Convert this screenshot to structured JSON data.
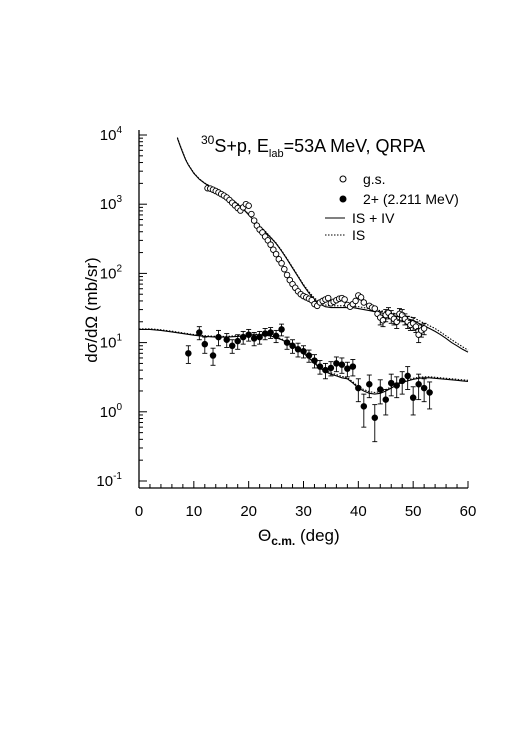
{
  "chart_data": {
    "type": "scatter",
    "title": {
      "sup": "30",
      "pre": "S+p, E",
      "sub": "lab",
      "post": "=53A MeV, QRPA"
    },
    "xlabel": {
      "main": "Θ",
      "sub": "c.m.",
      "unit": " (deg)"
    },
    "ylabel": "dσ/dΩ  (mb/sr)",
    "xlim": [
      0,
      60
    ],
    "ylim": [
      0.1,
      10000
    ],
    "yscale": "log",
    "x_ticks": [
      "0",
      "10",
      "20",
      "30",
      "40",
      "50",
      "60"
    ],
    "y_ticks": [
      {
        "base": "10",
        "exp": "-1"
      },
      {
        "base": "10",
        "exp": "0"
      },
      {
        "base": "10",
        "exp": "1"
      },
      {
        "base": "10",
        "exp": "2"
      },
      {
        "base": "10",
        "exp": "3"
      },
      {
        "base": "10",
        "exp": "4"
      }
    ],
    "legend_position": "top-right",
    "series": [
      {
        "name": "g.s.",
        "kind": "points",
        "marker": "open-circle",
        "x": [
          12.5,
          13.0,
          13.5,
          14.0,
          14.5,
          15.0,
          15.5,
          16.0,
          16.5,
          17.0,
          17.5,
          18.0,
          18.5,
          19.0,
          19.5,
          20.0,
          20.5,
          21.0,
          21.5,
          22.0,
          22.5,
          23.0,
          23.5,
          24.0,
          24.5,
          25.0,
          25.5,
          26.0,
          26.5,
          27.0,
          27.5,
          28.0,
          28.5,
          29.0,
          29.5,
          30.0,
          30.5,
          31.0,
          31.5,
          32.0,
          32.5,
          33.0,
          33.5,
          34.0,
          34.5,
          35.0,
          35.5,
          36.0,
          36.5,
          37.0,
          37.5,
          38.0,
          38.5,
          39.0,
          39.5,
          40.0,
          40.5,
          41.0,
          42.0,
          42.5,
          43.0,
          43.5,
          44.0,
          44.5,
          45.0,
          45.5,
          46.0,
          46.5,
          47.0,
          47.5,
          48.0,
          48.5,
          49.0,
          49.5,
          50.0,
          50.5,
          51.0,
          51.5,
          52.0
        ],
        "y": [
          1700,
          1680,
          1620,
          1550,
          1480,
          1400,
          1330,
          1250,
          1150,
          1050,
          960,
          880,
          810,
          900,
          1000,
          950,
          720,
          580,
          490,
          430,
          390,
          340,
          300,
          260,
          220,
          190,
          160,
          140,
          115,
          95,
          80,
          70,
          62,
          55,
          50,
          47,
          45,
          43,
          41,
          36,
          34,
          38,
          40,
          42,
          44,
          37,
          39,
          41,
          43,
          44,
          42,
          35,
          33,
          36,
          40,
          48,
          45,
          38,
          34,
          32,
          31,
          26,
          23,
          21,
          25,
          27,
          24,
          22,
          20,
          26,
          25,
          22,
          20,
          18,
          19,
          17,
          13,
          15,
          16
        ],
        "err": [
          0,
          0,
          0,
          0,
          0,
          0,
          0,
          0,
          0,
          0,
          0,
          0,
          0,
          0,
          0,
          0,
          0,
          0,
          0,
          0,
          0,
          0,
          0,
          0,
          0,
          0,
          0,
          0,
          0,
          0,
          0,
          0,
          0,
          0,
          0,
          0,
          0,
          0,
          0,
          0,
          0,
          0,
          0,
          0,
          0,
          0,
          0,
          0,
          0,
          0,
          0,
          0,
          0,
          0,
          0,
          0,
          0,
          0,
          0,
          0,
          0,
          0,
          5,
          4,
          5,
          5,
          5,
          4,
          4,
          5,
          5,
          4,
          4,
          3,
          4,
          3,
          3,
          3,
          3
        ]
      },
      {
        "name": "2+ (2.211 MeV)",
        "kind": "points",
        "marker": "filled-circle",
        "x": [
          9.0,
          11.0,
          12.0,
          13.5,
          14.5,
          16.0,
          17.0,
          18.0,
          19.0,
          20.0,
          21.0,
          22.0,
          23.0,
          24.0,
          25.0,
          26.0,
          27.0,
          28.0,
          29.0,
          30.0,
          31.0,
          32.0,
          33.0,
          34.0,
          35.0,
          36.0,
          37.0,
          38.0,
          39.0,
          40.0,
          41.0,
          42.0,
          43.0,
          44.0,
          45.0,
          46.0,
          47.0,
          48.0,
          49.0,
          50.0,
          51.0,
          52.0,
          53.0
        ],
        "y": [
          7.0,
          14.0,
          9.5,
          6.5,
          12.0,
          11.0,
          9.0,
          10.5,
          12.0,
          13.0,
          11.5,
          12.0,
          13.5,
          14.0,
          12.5,
          15.5,
          10.0,
          9.0,
          8.0,
          7.5,
          6.5,
          5.5,
          4.5,
          4.0,
          4.3,
          5.0,
          4.8,
          4.2,
          4.5,
          2.2,
          1.2,
          2.5,
          0.82,
          2.1,
          1.5,
          2.6,
          2.4,
          2.8,
          3.3,
          1.6,
          2.5,
          2.2,
          1.9
        ],
        "err": [
          2.0,
          3.0,
          2.5,
          1.8,
          3.0,
          2.5,
          2.0,
          2.5,
          2.5,
          2.5,
          2.5,
          2.5,
          2.5,
          2.5,
          2.5,
          3.0,
          2.0,
          2.0,
          1.8,
          1.5,
          1.3,
          1.2,
          1.0,
          1.0,
          1.0,
          1.2,
          1.2,
          1.0,
          1.2,
          0.8,
          0.6,
          0.9,
          0.45,
          0.8,
          0.6,
          0.9,
          0.8,
          1.0,
          1.2,
          0.7,
          1.0,
          0.8,
          0.8
        ]
      },
      {
        "name": "IS + IV",
        "kind": "line",
        "style": "solid",
        "x": [
          7.0,
          7.5,
          8.0,
          8.5,
          9.0,
          10.0,
          11.0,
          12.0,
          13.0,
          14.0,
          15.0,
          16.0,
          17.0,
          18.0,
          19.0,
          20.0,
          21.0,
          22.0,
          23.0,
          24.0,
          25.0,
          26.0,
          27.0,
          28.0,
          29.0,
          30.0,
          31.0,
          32.0,
          33.0,
          34.0,
          35.0,
          36.0,
          37.0,
          38.0,
          39.0,
          40.0,
          41.0,
          42.0,
          43.0,
          44.0,
          45.0,
          46.0,
          47.0,
          48.0,
          49.0,
          50.0,
          51.0,
          52.0,
          53.0,
          54.0,
          55.0,
          56.0,
          57.0,
          58.0,
          59.0,
          60.0
        ],
        "y": [
          9000,
          7000,
          5500,
          4400,
          3700,
          2800,
          2300,
          2000,
          1800,
          1600,
          1450,
          1300,
          1150,
          1000,
          850,
          700,
          580,
          480,
          400,
          330,
          270,
          210,
          160,
          120,
          90,
          67,
          52,
          42,
          36,
          33,
          32,
          32,
          32,
          32,
          32,
          31,
          30,
          29,
          28,
          27,
          26,
          25,
          24,
          23,
          22,
          21,
          19,
          17.5,
          16,
          14.5,
          13,
          11.5,
          10,
          9,
          8,
          7.3
        ]
      },
      {
        "name": "IS",
        "kind": "line",
        "style": "dotted",
        "x": [
          7.0,
          7.5,
          8.0,
          8.5,
          9.0,
          10.0,
          11.0,
          12.0,
          13.0,
          14.0,
          15.0,
          16.0,
          17.0,
          18.0,
          19.0,
          20.0,
          21.0,
          22.0,
          23.0,
          24.0,
          25.0,
          26.0,
          27.0,
          28.0,
          29.0,
          30.0,
          31.0,
          32.0,
          33.0,
          34.0,
          35.0,
          36.0,
          37.0,
          38.0,
          39.0,
          40.0,
          41.0,
          42.0,
          43.0,
          44.0,
          45.0,
          46.0,
          47.0,
          48.0,
          49.0,
          50.0,
          51.0,
          52.0,
          53.0,
          54.0,
          55.0,
          56.0,
          57.0,
          58.0,
          59.0,
          60.0
        ],
        "y": [
          9200,
          7100,
          5600,
          4450,
          3750,
          2830,
          2320,
          2020,
          1820,
          1620,
          1470,
          1320,
          1170,
          1020,
          870,
          715,
          590,
          490,
          408,
          336,
          275,
          214,
          163,
          123,
          92,
          69,
          54,
          44,
          38,
          35,
          34,
          34,
          34,
          34,
          33,
          33,
          32,
          31,
          30,
          29,
          28,
          27,
          26,
          25,
          24,
          23,
          21,
          19,
          17.5,
          16,
          14.2,
          12.5,
          11,
          9.8,
          8.7,
          7.8
        ]
      },
      {
        "name": "2+ IS + IV",
        "kind": "line",
        "style": "solid",
        "legend": false,
        "x": [
          0,
          2,
          4,
          6,
          8,
          10,
          12,
          14,
          16,
          18,
          20,
          22,
          24,
          26,
          27,
          28,
          29,
          30,
          31,
          32,
          33,
          34,
          35,
          36,
          37,
          38,
          39,
          40,
          41,
          42,
          43,
          44,
          45,
          46,
          47,
          48,
          49,
          50,
          51,
          52,
          53,
          54,
          55,
          56,
          57,
          58,
          59,
          60
        ],
        "y": [
          15.5,
          15.5,
          15.0,
          14.3,
          13.5,
          12.8,
          12.3,
          12.0,
          12.0,
          12.3,
          12.8,
          13.0,
          12.5,
          11.0,
          10.0,
          9.0,
          8.0,
          7.0,
          6.0,
          5.0,
          4.3,
          3.8,
          3.5,
          3.3,
          3.1,
          3.0,
          2.6,
          2.2,
          2.0,
          1.85,
          1.8,
          1.85,
          2.0,
          2.2,
          2.45,
          2.65,
          2.8,
          2.95,
          3.05,
          3.1,
          3.1,
          3.05,
          3.0,
          2.95,
          2.9,
          2.85,
          2.8,
          2.75
        ]
      },
      {
        "name": "2+ IS",
        "kind": "line",
        "style": "dotted",
        "legend": false,
        "x": [
          0,
          2,
          4,
          6,
          8,
          10,
          12,
          14,
          16,
          18,
          20,
          22,
          24,
          26,
          27,
          28,
          29,
          30,
          31,
          32,
          33,
          34,
          35,
          36,
          37,
          38,
          39,
          40,
          41,
          42,
          43,
          44,
          45,
          46,
          47,
          48,
          49,
          50,
          51,
          52,
          53,
          54,
          55,
          56,
          57,
          58,
          59,
          60
        ],
        "y": [
          15.8,
          15.8,
          15.3,
          14.6,
          13.8,
          13.1,
          12.6,
          12.3,
          12.3,
          12.6,
          13.1,
          13.3,
          12.8,
          11.3,
          10.3,
          9.3,
          8.2,
          7.2,
          6.2,
          5.2,
          4.45,
          3.95,
          3.65,
          3.45,
          3.25,
          3.1,
          2.7,
          2.3,
          2.1,
          1.95,
          1.9,
          1.95,
          2.1,
          2.3,
          2.55,
          2.75,
          2.9,
          3.05,
          3.15,
          3.2,
          3.2,
          3.15,
          3.1,
          3.05,
          3.0,
          2.95,
          2.9,
          2.85
        ]
      }
    ]
  }
}
